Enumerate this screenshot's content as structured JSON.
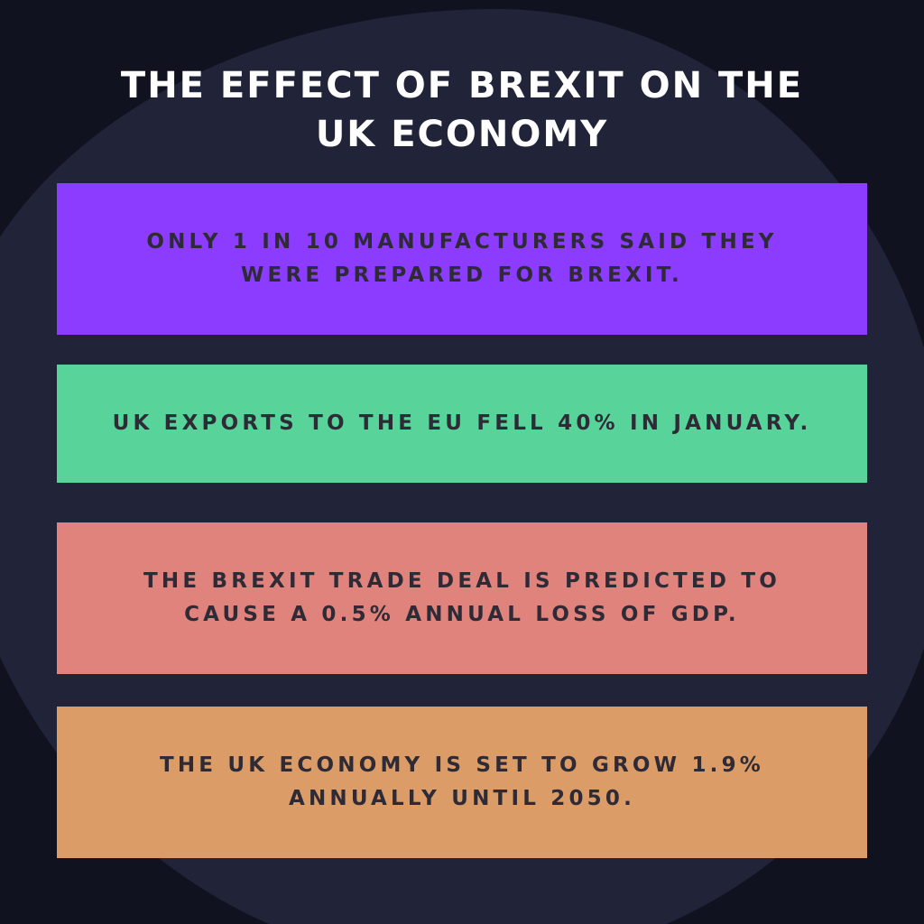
{
  "title": {
    "line1": "THE EFFECT OF BREXIT ON THE",
    "line2": "UK ECONOMY"
  },
  "facts": [
    {
      "line1": "ONLY 1 IN 10 MANUFACTURERS SAID THEY",
      "line2": "WERE PREPARED FOR BREXIT.",
      "color": "#8c3cfe"
    },
    {
      "line1": "UK EXPORTS TO THE EU FELL 40% IN JANUARY.",
      "color": "#58d49a"
    },
    {
      "line1": "THE BREXIT TRADE DEAL IS PREDICTED TO",
      "line2": "CAUSE A 0.5% ANNUAL LOSS OF GDP.",
      "color": "#e0837c"
    },
    {
      "line1": "THE UK ECONOMY IS SET TO GROW 1.9%",
      "line2": "ANNUALLY UNTIL 2050.",
      "color": "#db9c68"
    }
  ],
  "colors": {
    "background": "#11121f",
    "blob": "#212338",
    "title_text": "#ffffff",
    "card_text": "#2e2b36"
  }
}
